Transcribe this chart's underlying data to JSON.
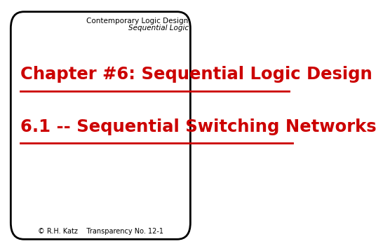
{
  "bg_color": "#ffffff",
  "border_color": "#000000",
  "title_line1": "Chapter #6: Sequential Logic Design",
  "title_line2": "6.1 -- Sequential Switching Networks",
  "title_color": "#cc0000",
  "title_fontsize": 17.5,
  "header_line1": "Contemporary Logic Design",
  "header_line2": "Sequential Logic",
  "header_color": "#000000",
  "header_fontsize": 7.5,
  "footer_text": "© R.H. Katz    Transparency No. 12-1",
  "footer_color": "#000000",
  "footer_fontsize": 7.0
}
